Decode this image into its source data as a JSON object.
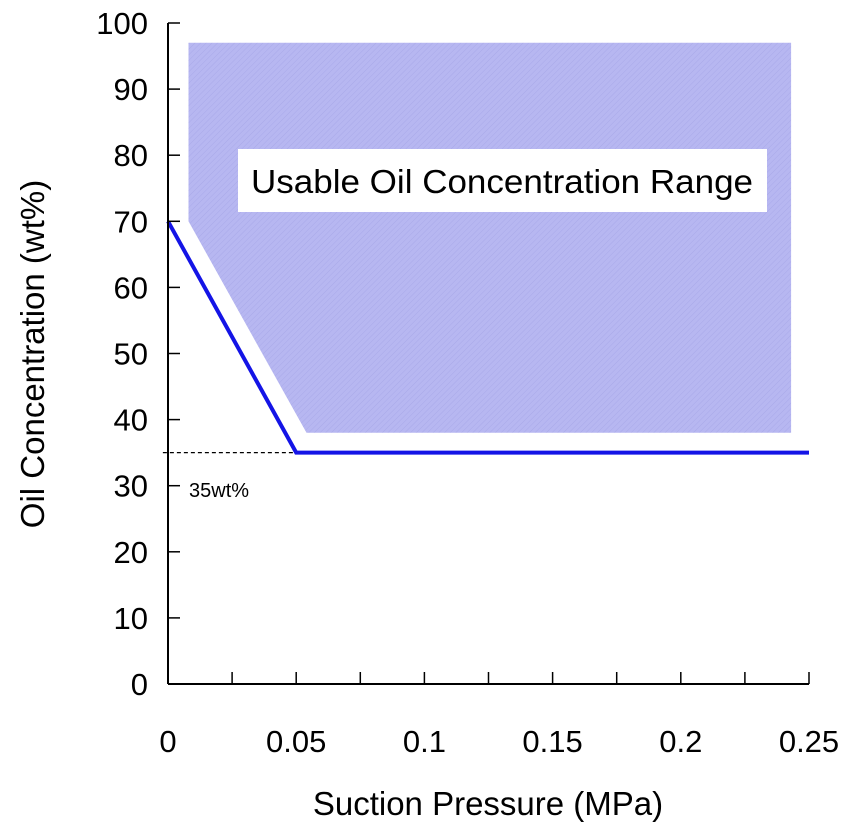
{
  "chart_data": {
    "type": "line",
    "xlabel": "Suction Pressure (MPa)",
    "ylabel": "Oil Concentration (wt%)",
    "xlim": [
      0,
      0.25
    ],
    "ylim": [
      0,
      100
    ],
    "x_ticks": [
      0,
      0.05,
      0.1,
      0.15,
      0.2,
      0.25
    ],
    "x_tick_labels": [
      "0",
      "0.05",
      "0.1",
      "0.15",
      "0.2",
      "0.25"
    ],
    "x_minor_step": 0.025,
    "y_ticks": [
      0,
      10,
      20,
      30,
      40,
      50,
      60,
      70,
      80,
      90,
      100
    ],
    "y_tick_labels": [
      "0",
      "10",
      "20",
      "30",
      "40",
      "50",
      "60",
      "70",
      "80",
      "90",
      "100"
    ],
    "grid": false,
    "series": [
      {
        "x": [
          0,
          0.05,
          0.25
        ],
        "y": [
          70,
          35,
          35
        ],
        "color": "#1414e6"
      }
    ],
    "region": {
      "label": "Usable Oil Concentration Range",
      "polygon": [
        [
          0.008,
          97
        ],
        [
          0.243,
          97
        ],
        [
          0.243,
          38
        ],
        [
          0.054,
          38
        ],
        [
          0.008,
          70
        ]
      ],
      "color": "#b4b4f0"
    },
    "reference_line": {
      "y": 35,
      "x_range": [
        -0.002,
        0.05
      ],
      "label": "35wt%",
      "style": "dashed"
    }
  }
}
